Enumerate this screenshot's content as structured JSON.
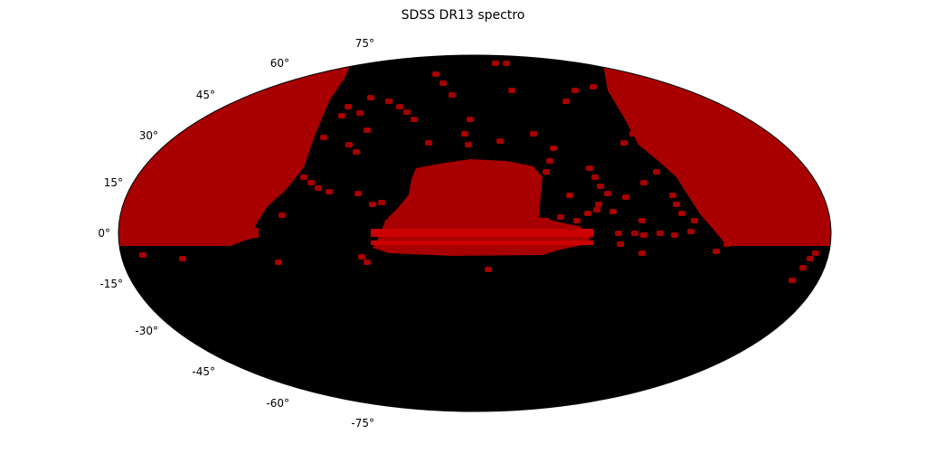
{
  "title": "SDSS DR13 spectro",
  "projection": "mollweide",
  "colors": {
    "background": "#000000",
    "coverage": "#a80000",
    "coverage_bright": "#cc0000",
    "outline": "#000000"
  },
  "latitude_labels": [
    "75°",
    "60°",
    "45°",
    "30°",
    "15°",
    "0°",
    "-15°",
    "-30°",
    "-45°",
    "-60°",
    "-75°"
  ],
  "latitude_values": [
    75,
    60,
    45,
    30,
    15,
    0,
    -15,
    -30,
    -45,
    -60,
    -75
  ]
}
